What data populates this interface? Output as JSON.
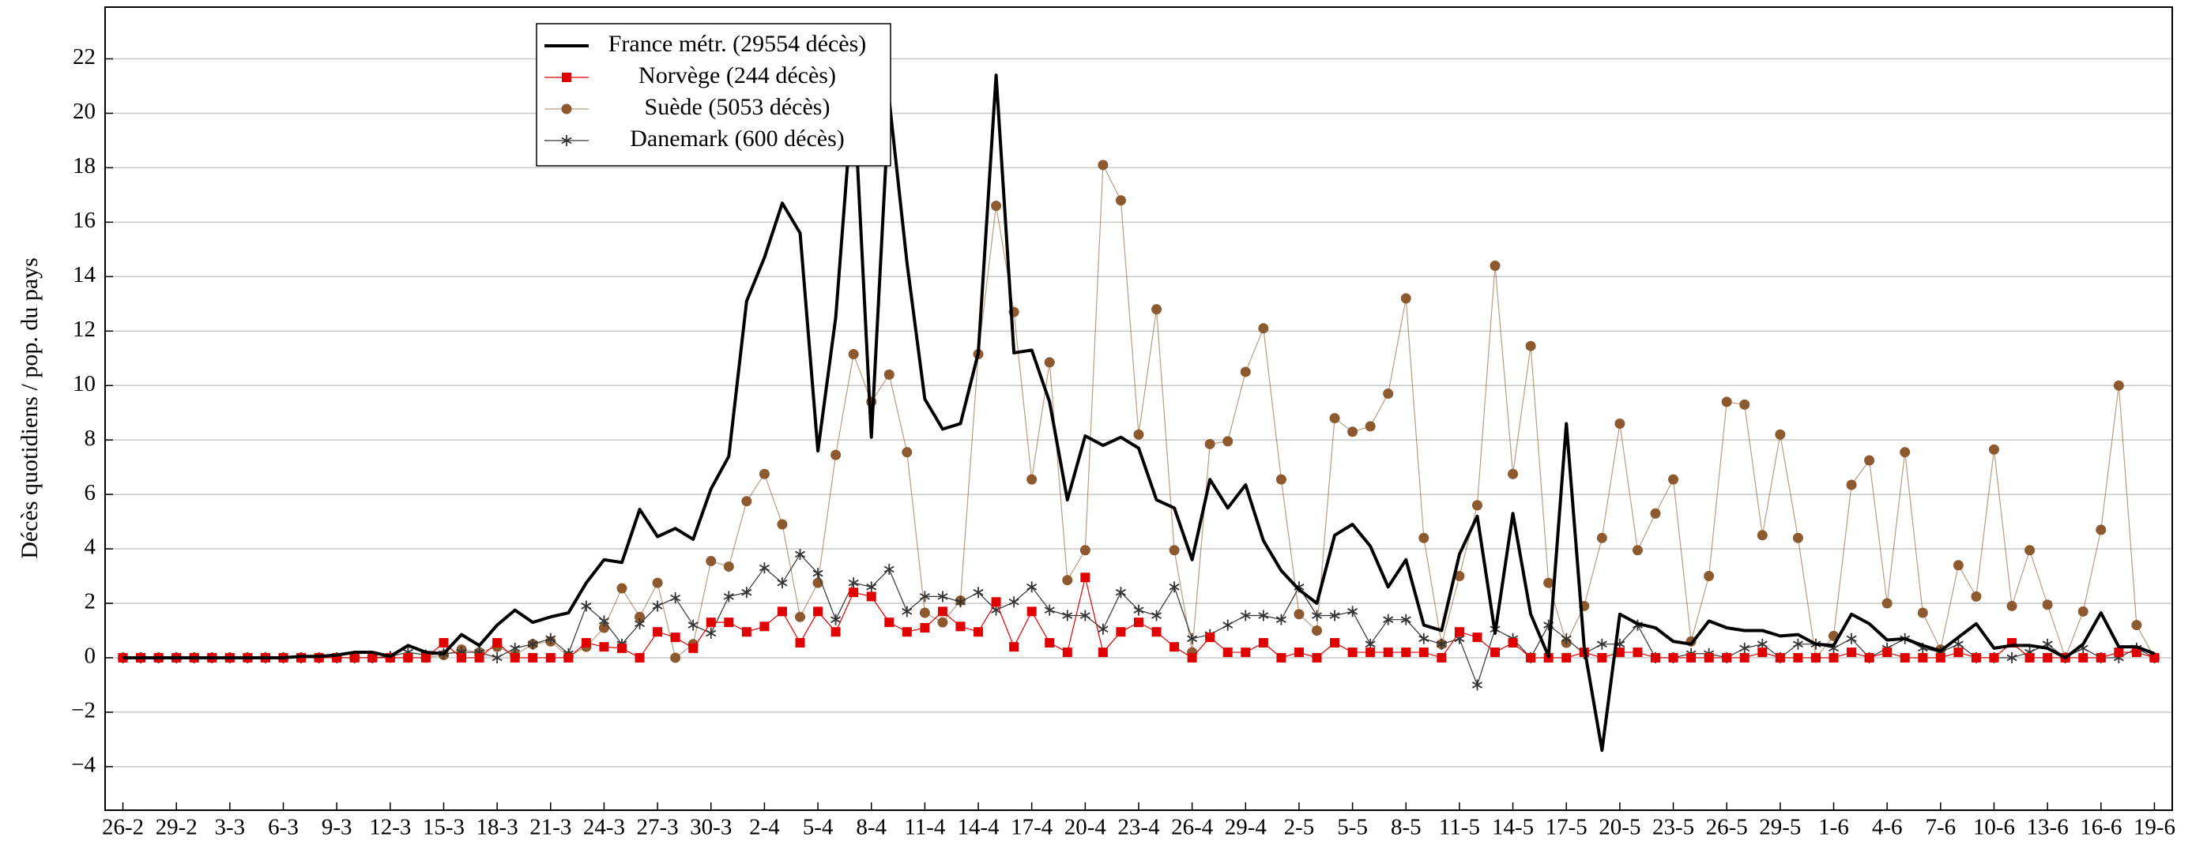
{
  "chart_data": {
    "type": "line",
    "y_label": "Décès quotidiens / pop. du pays",
    "categories": [
      "26-2",
      null,
      null,
      "29-2",
      null,
      null,
      "3-3",
      null,
      null,
      "6-3",
      null,
      null,
      "9-3",
      null,
      null,
      "12-3",
      null,
      null,
      "15-3",
      null,
      null,
      "18-3",
      null,
      null,
      "21-3",
      null,
      null,
      "24-3",
      null,
      null,
      "27-3",
      null,
      null,
      "30-3",
      null,
      null,
      "2-4",
      null,
      null,
      "5-4",
      null,
      null,
      "8-4",
      null,
      null,
      "11-4",
      null,
      null,
      "14-4",
      null,
      null,
      "17-4",
      null,
      null,
      "20-4",
      null,
      null,
      "23-4",
      null,
      null,
      "26-4",
      null,
      null,
      "29-4",
      null,
      null,
      "2-5",
      null,
      null,
      "5-5",
      null,
      null,
      "8-5",
      null,
      null,
      "11-5",
      null,
      null,
      "14-5",
      null,
      null,
      "17-5",
      null,
      null,
      "20-5",
      null,
      null,
      "23-5",
      null,
      null,
      "26-5",
      null,
      null,
      "29-5",
      null,
      null,
      "1-6",
      null,
      null,
      "4-6",
      null,
      null,
      "7-6",
      null,
      null,
      "10-6",
      null,
      null,
      "13-6",
      null,
      null,
      "16-6",
      null,
      null,
      "19-6"
    ],
    "series": [
      {
        "name": "France métr. (29554 décès)",
        "color": "#000000",
        "marker": "none",
        "line_width": 4,
        "values": [
          0,
          0,
          0,
          0,
          0,
          0,
          0,
          0,
          0,
          0,
          0.05,
          0.05,
          0.1,
          0.2,
          0.2,
          0.05,
          0.45,
          0.2,
          0.15,
          0.85,
          0.45,
          1.2,
          1.75,
          1.3,
          1.5,
          1.65,
          2.75,
          3.6,
          3.5,
          5.45,
          4.45,
          4.75,
          4.35,
          6.2,
          7.4,
          13.1,
          14.7,
          16.7,
          15.6,
          7.6,
          12.5,
          21,
          8.1,
          20.5,
          14.5,
          9.5,
          8.4,
          8.6,
          11.2,
          21.4,
          11.2,
          11.3,
          9.4,
          5.8,
          8.15,
          7.8,
          8.1,
          7.7,
          5.8,
          5.5,
          3.6,
          6.55,
          5.5,
          6.35,
          4.3,
          3.2,
          2.5,
          2.0,
          4.5,
          4.9,
          4.1,
          2.6,
          3.6,
          1.2,
          1.0,
          3.8,
          5.2,
          0.9,
          5.3,
          1.6,
          0.05,
          8.6,
          0.4,
          -3.4,
          1.6,
          1.25,
          1.1,
          0.6,
          0.5,
          1.35,
          1.1,
          1.0,
          1.0,
          0.8,
          0.85,
          0.5,
          0.45,
          1.6,
          1.25,
          0.65,
          0.7,
          0.45,
          0.25,
          0.75,
          1.25,
          0.35,
          0.45,
          0.45,
          0.35,
          0.0,
          0.5,
          1.65,
          0.4,
          0.4,
          0.15
        ]
      },
      {
        "name": "Norvège (244 décès)",
        "color": "#e00000",
        "marker": "square",
        "line_width": 1.2,
        "values": [
          0,
          0,
          0,
          0,
          0,
          0,
          0,
          0,
          0,
          0,
          0,
          0,
          0,
          0,
          0,
          0,
          0,
          0,
          0.55,
          0,
          0,
          0.55,
          0,
          0,
          0,
          0,
          0.55,
          0.4,
          0.35,
          0,
          0.95,
          0.75,
          0.35,
          1.3,
          1.3,
          0.95,
          1.15,
          1.7,
          0.55,
          1.7,
          0.95,
          2.4,
          2.25,
          1.3,
          0.95,
          1.1,
          1.7,
          1.15,
          0.95,
          2.05,
          0.4,
          1.7,
          0.55,
          0.2,
          2.95,
          0.2,
          0.95,
          1.3,
          0.95,
          0.4,
          0,
          0.75,
          0.2,
          0.2,
          0.55,
          0,
          0.2,
          0,
          0.55,
          0.2,
          0.2,
          0.2,
          0.2,
          0.2,
          0,
          0.95,
          0.75,
          0.2,
          0.55,
          0,
          0,
          0,
          0.2,
          0,
          0.2,
          0.2,
          0,
          0,
          0,
          0,
          0,
          0,
          0.2,
          0,
          0,
          0,
          0,
          0.2,
          0,
          0.2,
          0,
          0,
          0,
          0.2,
          0,
          0,
          0.55,
          0,
          0,
          0,
          0,
          0,
          0.2,
          0.2,
          0
        ]
      },
      {
        "name": "Suède (5053 décès)",
        "color": "#8c5a2e",
        "marker": "circle",
        "line_width": 1.2,
        "values": [
          0,
          0,
          0,
          0,
          0,
          0,
          0,
          0,
          0,
          0,
          0,
          0,
          0,
          0,
          0,
          0,
          0,
          0,
          0.1,
          0.3,
          0.2,
          0.4,
          0.1,
          0.5,
          0.6,
          0.05,
          0.4,
          1.1,
          2.55,
          1.5,
          2.75,
          0,
          0.5,
          3.55,
          3.35,
          5.75,
          6.75,
          4.9,
          1.5,
          2.75,
          7.45,
          11.15,
          9.4,
          10.4,
          7.55,
          1.65,
          1.3,
          2.1,
          11.15,
          16.6,
          12.7,
          6.55,
          10.85,
          2.85,
          3.95,
          18.1,
          16.8,
          8.2,
          12.8,
          3.95,
          0.2,
          7.85,
          7.95,
          10.5,
          12.1,
          6.55,
          1.6,
          1.0,
          8.8,
          8.3,
          8.5,
          9.7,
          13.2,
          4.4,
          0.5,
          3.0,
          5.6,
          14.4,
          6.75,
          11.45,
          2.75,
          0.55,
          1.9,
          4.4,
          8.6,
          3.95,
          5.3,
          6.55,
          0.6,
          3.0,
          9.4,
          9.3,
          4.5,
          8.2,
          4.4,
          0,
          0.8,
          6.35,
          7.25,
          2.0,
          7.55,
          1.65,
          0.3,
          3.4,
          2.25,
          7.65,
          1.9,
          3.95,
          1.95,
          0,
          1.7,
          4.7,
          10.0,
          1.2,
          0
        ]
      },
      {
        "name": "Danemark (600 décès)",
        "color": "#333333",
        "marker": "star",
        "line_width": 1.2,
        "values": [
          0,
          0,
          0,
          0,
          0,
          0,
          0,
          0,
          0,
          0,
          0,
          0,
          0,
          0,
          0,
          0.05,
          0.2,
          0.1,
          0.15,
          0.2,
          0.2,
          0,
          0.35,
          0.5,
          0.7,
          0.15,
          1.9,
          1.35,
          0.5,
          1.25,
          1.9,
          2.2,
          1.2,
          0.9,
          2.25,
          2.4,
          3.3,
          2.75,
          3.8,
          3.1,
          1.4,
          2.75,
          2.6,
          3.25,
          1.7,
          2.25,
          2.25,
          2.05,
          2.4,
          1.75,
          2.05,
          2.6,
          1.75,
          1.55,
          1.55,
          1.05,
          2.4,
          1.75,
          1.55,
          2.6,
          0.7,
          0.85,
          1.2,
          1.55,
          1.55,
          1.4,
          2.6,
          1.55,
          1.55,
          1.7,
          0.5,
          1.4,
          1.4,
          0.7,
          0.5,
          0.7,
          -1.0,
          1.05,
          0.7,
          0,
          1.2,
          0.7,
          0.15,
          0.5,
          0.5,
          1.2,
          0,
          0,
          0.15,
          0.15,
          0,
          0.35,
          0.5,
          0,
          0.5,
          0.5,
          0.35,
          0.7,
          0,
          0.35,
          0.7,
          0.35,
          0.2,
          0.5,
          0,
          0,
          0,
          0.2,
          0.5,
          0,
          0.35,
          0,
          0,
          0.35,
          0
        ]
      }
    ],
    "ylim": [
      -5.6,
      23.9
    ],
    "yticks": [
      {
        "value": -4,
        "label": "−4"
      },
      {
        "value": -2,
        "label": "−2"
      },
      0,
      2,
      4,
      6,
      8,
      10,
      12,
      14,
      16,
      18,
      20,
      22
    ],
    "grid": true
  }
}
